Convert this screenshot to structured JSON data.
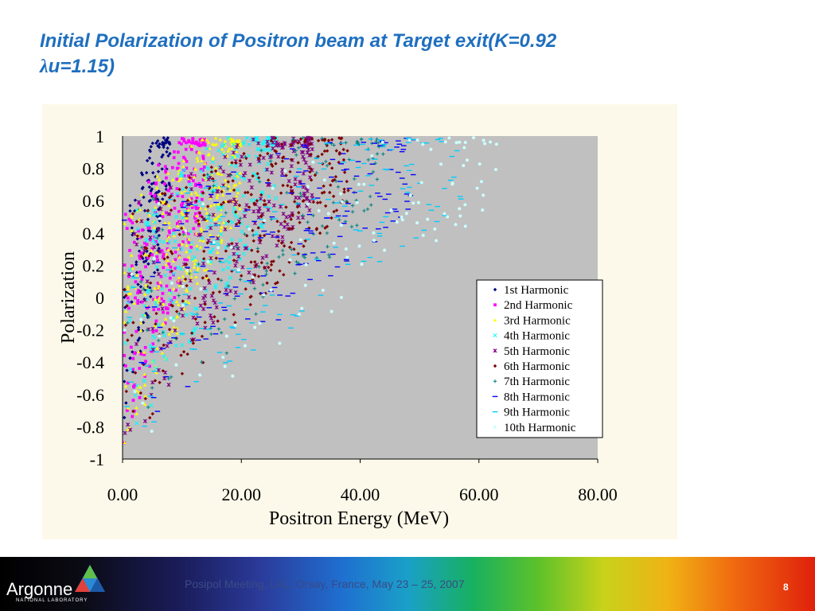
{
  "slide": {
    "title_line1": "Initial Polarization of Positron beam at Target exit(K=0.92",
    "title_lambda": "λ",
    "title_line2_rest": "u=1.15)"
  },
  "footer": {
    "logo_text": "Argonne",
    "logo_sub": "NATIONAL LABORATORY",
    "meeting_text": "Posipol Meeting, LAL, Orsay, France, May 23 – 25, 2007",
    "page_number": "8"
  },
  "chart_data": {
    "type": "scatter",
    "xlabel": "Positron Energy (MeV)",
    "ylabel": "Polarization",
    "xlim": [
      0,
      80
    ],
    "ylim": [
      -1,
      1
    ],
    "x_ticks": [
      "0.00",
      "20.00",
      "40.00",
      "60.00",
      "80.00"
    ],
    "y_ticks": [
      "1",
      "0.8",
      "0.6",
      "0.4",
      "0.2",
      "0",
      "-0.2",
      "-0.4",
      "-0.6",
      "-0.8",
      "-1"
    ],
    "plot_background": "#c0c0c0",
    "legend_position": "right",
    "series": [
      {
        "name": "1st Harmonic",
        "marker": "diamond",
        "color": "#000080",
        "emax": 8,
        "count": 160
      },
      {
        "name": "2nd Harmonic",
        "marker": "square",
        "color": "#ff00ff",
        "emax": 14,
        "count": 260
      },
      {
        "name": "3rd Harmonic",
        "marker": "triangle",
        "color": "#ffff00",
        "emax": 20,
        "count": 320
      },
      {
        "name": "4th Harmonic",
        "marker": "x",
        "color": "#00ffff",
        "emax": 26,
        "count": 240
      },
      {
        "name": "5th Harmonic",
        "marker": "star",
        "color": "#800080",
        "emax": 32,
        "count": 260
      },
      {
        "name": "6th Harmonic",
        "marker": "diamond",
        "color": "#800000",
        "emax": 38,
        "count": 300
      },
      {
        "name": "7th Harmonic",
        "marker": "plus",
        "color": "#008080",
        "emax": 44,
        "count": 140
      },
      {
        "name": "8th Harmonic",
        "marker": "dash",
        "color": "#0000ff",
        "emax": 50,
        "count": 160
      },
      {
        "name": "9th Harmonic",
        "marker": "dash",
        "color": "#00ccff",
        "emax": 57,
        "count": 150
      },
      {
        "name": "10th Harmonic",
        "marker": "dot",
        "color": "#ccffff",
        "emax": 63,
        "count": 120
      }
    ]
  }
}
